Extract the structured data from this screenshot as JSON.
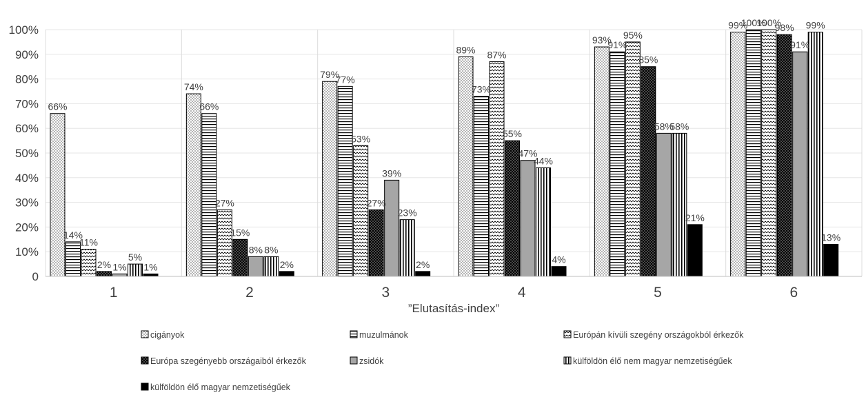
{
  "chart_data": {
    "type": "bar",
    "xlabel": "”Elutasítás-index”",
    "ylabel": "",
    "ylim": [
      0,
      100
    ],
    "yticks": [
      "0",
      "10%",
      "20%",
      "30%",
      "40%",
      "50%",
      "60%",
      "70%",
      "80%",
      "90%",
      "100%"
    ],
    "categories": [
      "1",
      "2",
      "3",
      "4",
      "5",
      "6"
    ],
    "grid": "vertical-category-separators",
    "legend_position": "bottom",
    "series": [
      {
        "name": "cigányok",
        "pattern": "dots",
        "color": "#ffffff",
        "values": [
          66,
          74,
          79,
          89,
          93,
          99
        ],
        "labels": [
          "66%",
          "74%",
          "79%",
          "89%",
          "93%",
          "99%"
        ]
      },
      {
        "name": "muzulmánok",
        "pattern": "horizontal",
        "color": "#ffffff",
        "values": [
          14,
          66,
          77,
          73,
          91,
          100
        ],
        "labels": [
          "14%",
          "66%",
          "77%",
          "73%",
          "91%",
          "100%"
        ]
      },
      {
        "name": "Európán kívüli szegény országokból érkezők",
        "pattern": "zigzag",
        "color": "#ffffff",
        "values": [
          11,
          27,
          53,
          87,
          95,
          100
        ],
        "labels": [
          "11%",
          "27%",
          "53%",
          "87%",
          "95%",
          "100%"
        ]
      },
      {
        "name": "Európa szegényebb országaiból érkezők",
        "pattern": "darkdots",
        "color": "#000000",
        "values": [
          2,
          15,
          27,
          55,
          85,
          98
        ],
        "labels": [
          "2%",
          "15%",
          "27%",
          "55%",
          "85%",
          "98%"
        ]
      },
      {
        "name": "zsidók",
        "pattern": "solid",
        "color": "#a6a6a6",
        "values": [
          1,
          8,
          39,
          47,
          58,
          91
        ],
        "labels": [
          "1%",
          "8%",
          "39%",
          "47%",
          "58%",
          "91%"
        ]
      },
      {
        "name": "külföldön élő nem magyar nemzetiségűek",
        "pattern": "vertical",
        "color": "#ffffff",
        "values": [
          5,
          8,
          23,
          44,
          58,
          99
        ],
        "labels": [
          "5%",
          "8%",
          "23%",
          "44%",
          "58%",
          "99%"
        ]
      },
      {
        "name": "külföldön élő magyar nemzetiségűek",
        "pattern": "solid",
        "color": "#000000",
        "values": [
          1,
          2,
          2,
          4,
          21,
          13
        ],
        "labels": [
          "1%",
          "2%",
          "2%",
          "4%",
          "21%",
          "13%"
        ]
      }
    ]
  }
}
